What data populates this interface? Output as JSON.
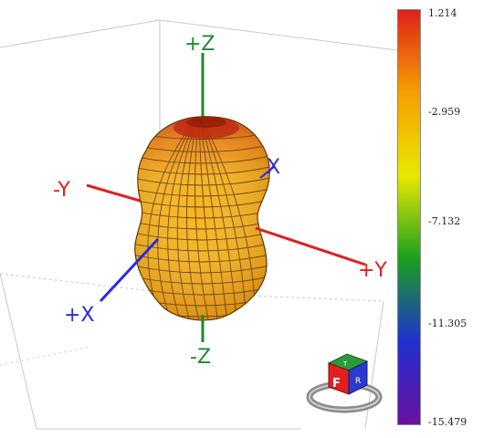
{
  "axes": {
    "plus_z": "+Z",
    "minus_z": "-Z",
    "plus_y": "+Y",
    "minus_y": "-Y",
    "plus_x": "+X",
    "x": "X"
  },
  "colorbar": {
    "ticks": [
      "1.214",
      "-2.959",
      "-7.132",
      "-11.305",
      "-15.479"
    ],
    "colors": [
      "#e0201a",
      "#f5a000",
      "#e8e800",
      "#1aa020",
      "#2030d0",
      "#6a10a0"
    ]
  },
  "view_cube": {
    "face_front": "F"
  },
  "colors": {
    "z_axis": "#1f8a2a",
    "y_axis": "#e02020",
    "x_axis": "#2a2ae0"
  }
}
